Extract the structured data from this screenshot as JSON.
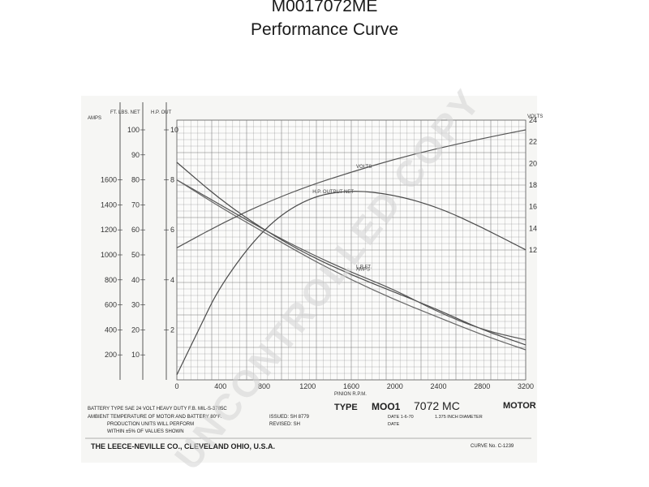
{
  "header": {
    "code": "M0017072ME",
    "subtitle": "Performance Curve"
  },
  "chart_data": {
    "type": "line",
    "x_label": "PINION R.P.M.",
    "x_ticks": [
      0,
      400,
      800,
      1200,
      1600,
      2000,
      2400,
      2800,
      3200
    ],
    "xlim": [
      0,
      3200
    ],
    "volts_axis": {
      "label": "VOLTS",
      "ticks": [
        12,
        14,
        16,
        18,
        20,
        22,
        24
      ],
      "ylim": [
        0,
        24
      ]
    },
    "amps_axis": {
      "label": "AMPS",
      "ticks": [
        200,
        400,
        600,
        800,
        1000,
        1200,
        1400,
        1600
      ],
      "ylim": [
        0,
        2000
      ]
    },
    "torque_axis": {
      "label": "FT. LBS. NET",
      "ticks": [
        10,
        20,
        30,
        40,
        50,
        60,
        70,
        80,
        90,
        100
      ],
      "ylim": [
        0,
        100
      ]
    },
    "hp_axis": {
      "label": "H.P. OUT",
      "ticks": [
        2,
        4,
        6,
        8,
        10
      ],
      "ylim": [
        0,
        10
      ]
    },
    "grid": true,
    "series": [
      {
        "name": "VOLTS",
        "axis": "volts",
        "x": [
          0,
          400,
          800,
          1200,
          1600,
          2000,
          2400,
          2800,
          3200
        ],
        "y": [
          12.2,
          14.4,
          16.3,
          17.9,
          19.2,
          20.4,
          21.4,
          22.3,
          23.1
        ]
      },
      {
        "name": "AMPS",
        "axis": "amps",
        "x": [
          0,
          400,
          800,
          1200,
          1600,
          2000,
          2400,
          2800,
          3200
        ],
        "y": [
          1740,
          1440,
          1200,
          1000,
          840,
          700,
          560,
          400,
          280
        ]
      },
      {
        "name": "L.B.FT.",
        "axis": "torque",
        "x": [
          0,
          400,
          800,
          1200,
          1600,
          2000,
          2400,
          2800,
          3200
        ],
        "y": [
          80,
          70,
          60,
          51,
          43,
          36,
          27,
          20,
          16
        ]
      },
      {
        "name": "H.P. OUTPUT NET",
        "axis": "hp",
        "x": [
          0,
          200,
          400,
          800,
          1200,
          1600,
          2000,
          2400,
          2800,
          3200
        ],
        "y": [
          0.2,
          2.0,
          3.8,
          6.1,
          7.3,
          7.6,
          7.4,
          6.9,
          6.1,
          5.2
        ]
      },
      {
        "name": "",
        "axis": "amps",
        "x": [
          0,
          400,
          800,
          1200,
          1600,
          2000,
          2400,
          2800,
          3200
        ],
        "y": [
          1600,
          1380,
          1180,
          980,
          800,
          640,
          500,
          360,
          240
        ]
      }
    ]
  },
  "footer": {
    "battery_line": "BATTERY TYPE SAE 24 VOLT HEAVY DUTY F.B. MIL-S-3785C",
    "ambient_line": "AMBIENT TEMPERATURE OF MOTOR AND BATTERY 80°F.",
    "issued": "ISSUED: SH 8779",
    "revised": "REVISED: SH",
    "production_line": "PRODUCTION UNITS WILL PERFORM",
    "within_line": "WITHIN ±5% OF VALUES SHOWN",
    "type_label": "TYPE",
    "model_prefix": "MOO1",
    "model_number": "7072 MC",
    "motor_label": "MOTOR",
    "date_line": "DATE 1-6-70",
    "pinion_line": "1.375 INCH DIAMETER",
    "date2_line": "DATE",
    "company": "THE LEECE-NEVILLE CO., CLEVELAND OHIO, U.S.A.",
    "curve_no": "CURVE No. C-1239"
  },
  "watermark": {
    "text": "UNCONTROLLED COPY"
  }
}
